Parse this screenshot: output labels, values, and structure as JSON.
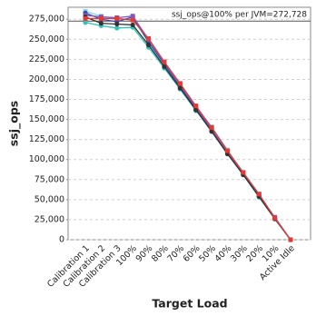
{
  "chart_data": {
    "type": "line",
    "annotation": "ssj_ops@100% per JVM=272,728",
    "reference_value": 272728,
    "xlabel": "Target Load",
    "ylabel": "ssj_ops",
    "categories": [
      "Calibration 1",
      "Calibration 2",
      "Calibration 3",
      "100%",
      "90%",
      "80%",
      "70%",
      "60%",
      "50%",
      "40%",
      "30%",
      "20%",
      "10%",
      "Active Idle"
    ],
    "ylim": [
      0,
      290000
    ],
    "yticks": [
      0,
      {
        "value": 25000,
        "label": "25,000"
      },
      {
        "value": 50000,
        "label": "50,000"
      },
      {
        "value": 75000,
        "label": "75,000"
      },
      {
        "value": 100000,
        "label": "100,000"
      },
      {
        "value": 125000,
        "label": "125,000"
      },
      {
        "value": 150000,
        "label": "150,000"
      },
      {
        "value": 175000,
        "label": "175,000"
      },
      {
        "value": 200000,
        "label": "200,000"
      },
      {
        "value": 225000,
        "label": "225,000"
      },
      {
        "value": 250000,
        "label": "250,000"
      },
      {
        "value": 275000,
        "label": "275,000"
      }
    ],
    "grid": true,
    "series": [
      {
        "color": "#2ec4b6",
        "values": [
          271000,
          267000,
          264000,
          265000,
          240000,
          214000,
          188000,
          161000,
          139000,
          110000,
          81000,
          53000,
          26000,
          0
        ]
      },
      {
        "color": "#80deea",
        "values": [
          285000,
          279000,
          275000,
          276000,
          246000,
          217000,
          192000,
          165000,
          141000,
          112000,
          83000,
          55000,
          27000,
          0
        ]
      },
      {
        "color": "#3949ab",
        "values": [
          283000,
          275000,
          272000,
          278000,
          247000,
          219000,
          191000,
          164000,
          136000,
          109000,
          82000,
          55000,
          27000,
          0
        ]
      },
      {
        "color": "#7e57c2",
        "values": [
          280000,
          278000,
          277000,
          279000,
          250000,
          221000,
          194000,
          166000,
          138000,
          110000,
          83000,
          56000,
          28000,
          0
        ]
      },
      {
        "color": "#333333",
        "values": [
          278000,
          270000,
          269000,
          268000,
          243000,
          216000,
          189000,
          162000,
          135000,
          107000,
          81000,
          54000,
          26000,
          0
        ]
      },
      {
        "color": "#e53935",
        "values": [
          276000,
          276000,
          276000,
          274000,
          251000,
          222000,
          195000,
          167000,
          140000,
          111000,
          84000,
          57000,
          27000,
          0
        ]
      }
    ]
  }
}
